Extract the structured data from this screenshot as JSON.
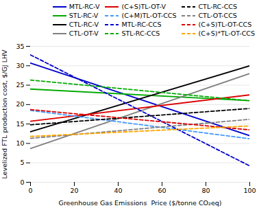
{
  "chart_data": {
    "type": "line",
    "x_label": "Greenhouse Gas Emissions  Price ($/tonne CO₂eq)",
    "y_label": "Levelized FTL production cost, $/GJ LHV",
    "x": [
      0,
      100
    ],
    "series": [
      {
        "name": "MTL-RC-V",
        "color": "#0000cc",
        "line_style": "solid",
        "values": [
          30.7,
          12.0
        ]
      },
      {
        "name": "STL-RC-V",
        "color": "#00aa00",
        "line_style": "solid",
        "values": [
          24.0,
          21.0
        ]
      },
      {
        "name": "CTL-RC-V",
        "color": "#000000",
        "line_style": "solid",
        "values": [
          13.0,
          30.0
        ]
      },
      {
        "name": "CTL-OT-V",
        "color": "#808080",
        "line_style": "solid",
        "values": [
          8.7,
          28.0
        ]
      },
      {
        "name": "(C+S)TL-OT-V",
        "color": "#dd0000",
        "line_style": "solid",
        "values": [
          15.7,
          22.5
        ]
      },
      {
        "name": "(C+M)TL-OT-CCS",
        "color": "#4499ff",
        "line_style": "dashed",
        "values": [
          18.5,
          11.2
        ]
      },
      {
        "name": "MTL-RC-CCS",
        "color": "#0000cc",
        "line_style": "dashed",
        "values": [
          32.8,
          4.2
        ]
      },
      {
        "name": "STL-RC-CCS",
        "color": "#00aa00",
        "line_style": "dashed",
        "values": [
          26.3,
          21.0
        ]
      },
      {
        "name": "CTL-RC-CCS",
        "color": "#000000",
        "line_style": "dashed",
        "values": [
          14.8,
          19.0
        ]
      },
      {
        "name": "CTL-OT-CCS",
        "color": "#808080",
        "line_style": "dashed",
        "values": [
          11.3,
          16.2
        ]
      },
      {
        "name": "(C+S)TL-OT-CCS",
        "color": "#dd0000",
        "line_style": "dashed",
        "values": [
          18.7,
          13.5
        ]
      },
      {
        "name": "(C+S)*TL-OT-CCS",
        "color": "#ffa500",
        "line_style": "dashed",
        "values": [
          11.8,
          14.5
        ]
      }
    ],
    "xlim": [
      0,
      100
    ],
    "ylim": [
      0,
      35
    ],
    "xticks": [
      0,
      20,
      40,
      60,
      80,
      100
    ],
    "yticks": [
      0,
      5,
      10,
      15,
      20,
      25,
      30,
      35
    ],
    "grid": "y",
    "legend": "upper right"
  }
}
